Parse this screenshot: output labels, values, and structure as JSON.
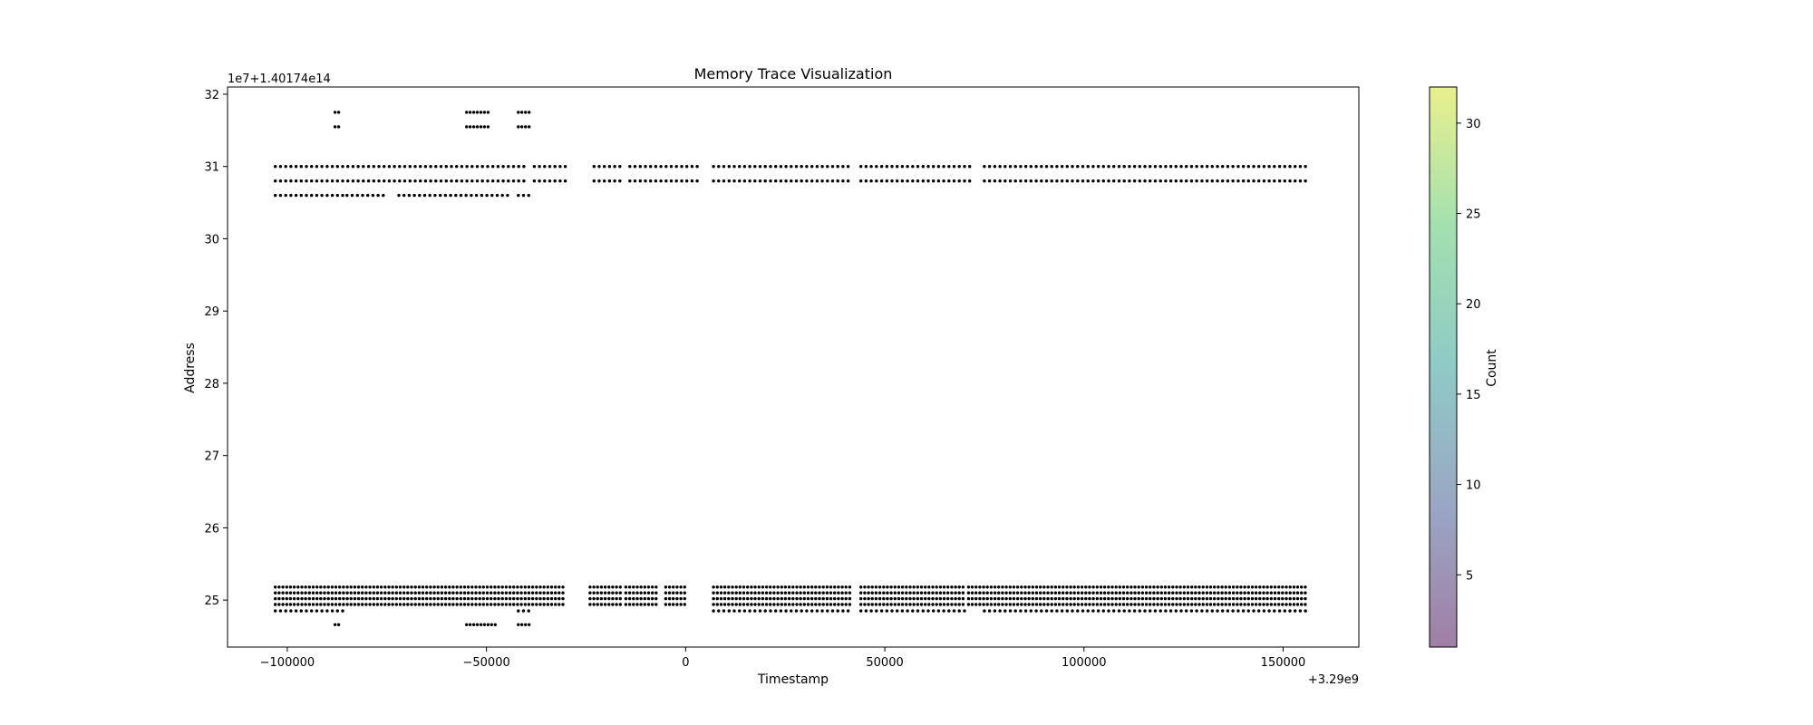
{
  "chart_data": {
    "type": "scatter",
    "title": "Memory Trace Visualization",
    "xlabel": "Timestamp",
    "ylabel": "Address",
    "x_offset_label": "+3.29e9",
    "y_offset_label": "1e7+1.40174e14",
    "xlim": [
      -115000,
      169000
    ],
    "ylim": [
      24.35,
      32.1
    ],
    "x_ticks": [
      {
        "value": -100000,
        "label": "−100000"
      },
      {
        "value": -50000,
        "label": "−50000"
      },
      {
        "value": 0,
        "label": "0"
      },
      {
        "value": 50000,
        "label": "50000"
      },
      {
        "value": 100000,
        "label": "100000"
      },
      {
        "value": 150000,
        "label": "150000"
      }
    ],
    "y_ticks": [
      {
        "value": 25,
        "label": "25"
      },
      {
        "value": 26,
        "label": "26"
      },
      {
        "value": 27,
        "label": "27"
      },
      {
        "value": 28,
        "label": "28"
      },
      {
        "value": 29,
        "label": "29"
      },
      {
        "value": 30,
        "label": "30"
      },
      {
        "value": 31,
        "label": "31"
      },
      {
        "value": 32,
        "label": "32"
      }
    ],
    "point_color": "#000000",
    "grid": false,
    "bands": [
      {
        "address": 31.75,
        "segments": [
          [
            -88000,
            -87000
          ],
          [
            -55000,
            -49000
          ],
          [
            -42000,
            -39000
          ]
        ],
        "step": 900
      },
      {
        "address": 31.55,
        "segments": [
          [
            -88000,
            -87000
          ],
          [
            -55000,
            -49000
          ],
          [
            -42000,
            -39000
          ]
        ],
        "step": 900
      },
      {
        "address": 31.0,
        "segments": [
          [
            -103000,
            -40000
          ],
          [
            -38000,
            -30000
          ],
          [
            -23000,
            -16000
          ],
          [
            -14000,
            4000
          ],
          [
            7000,
            42000
          ],
          [
            44000,
            72000
          ],
          [
            75000,
            156000
          ]
        ],
        "step": 1300
      },
      {
        "address": 30.8,
        "segments": [
          [
            -103000,
            -40000
          ],
          [
            -38000,
            -30000
          ],
          [
            -23000,
            -16000
          ],
          [
            -14000,
            4000
          ],
          [
            7000,
            42000
          ],
          [
            44000,
            72000
          ],
          [
            75000,
            156000
          ]
        ],
        "step": 1300
      },
      {
        "address": 30.6,
        "segments": [
          [
            -103000,
            -86000
          ],
          [
            -85000,
            -75000
          ],
          [
            -72000,
            -44000
          ],
          [
            -42000,
            -39000
          ]
        ],
        "step": 1300
      },
      {
        "address": 25.18,
        "segments": [
          [
            -103000,
            -30000
          ],
          [
            -24000,
            -16000
          ],
          [
            -15000,
            -7000
          ],
          [
            -5000,
            0
          ],
          [
            7000,
            42000
          ],
          [
            44000,
            70000
          ],
          [
            71000,
            156000
          ]
        ],
        "step": 950
      },
      {
        "address": 25.1,
        "segments": [
          [
            -103000,
            -30000
          ],
          [
            -24000,
            -16000
          ],
          [
            -15000,
            -7000
          ],
          [
            -5000,
            0
          ],
          [
            7000,
            42000
          ],
          [
            44000,
            70000
          ],
          [
            71000,
            156000
          ]
        ],
        "step": 950
      },
      {
        "address": 25.02,
        "segments": [
          [
            -103000,
            -30000
          ],
          [
            -24000,
            -16000
          ],
          [
            -15000,
            -7000
          ],
          [
            -5000,
            0
          ],
          [
            7000,
            42000
          ],
          [
            44000,
            70000
          ],
          [
            71000,
            156000
          ]
        ],
        "step": 950
      },
      {
        "address": 24.94,
        "segments": [
          [
            -103000,
            -30000
          ],
          [
            -24000,
            -16000
          ],
          [
            -15000,
            -7000
          ],
          [
            -5000,
            0
          ],
          [
            7000,
            42000
          ],
          [
            44000,
            70000
          ],
          [
            71000,
            156000
          ]
        ],
        "step": 950
      },
      {
        "address": 24.85,
        "segments": [
          [
            -103000,
            -86000
          ],
          [
            -42000,
            -39000
          ],
          [
            7000,
            42000
          ],
          [
            44000,
            70000
          ],
          [
            75000,
            156000
          ]
        ],
        "step": 1300
      },
      {
        "address": 24.66,
        "segments": [
          [
            -88000,
            -87000
          ],
          [
            -55000,
            -47000
          ],
          [
            -42000,
            -39000
          ]
        ],
        "step": 900
      }
    ],
    "colorbar": {
      "label": "Count",
      "range": [
        1,
        32
      ],
      "ticks": [
        {
          "value": 5,
          "label": "5"
        },
        {
          "value": 10,
          "label": "10"
        },
        {
          "value": 15,
          "label": "15"
        },
        {
          "value": 20,
          "label": "20"
        },
        {
          "value": 25,
          "label": "25"
        },
        {
          "value": 30,
          "label": "30"
        }
      ],
      "colors": [
        "#a07fa6",
        "#9aa6c4",
        "#8fcac6",
        "#a2e0b0",
        "#e9f08d"
      ]
    }
  }
}
